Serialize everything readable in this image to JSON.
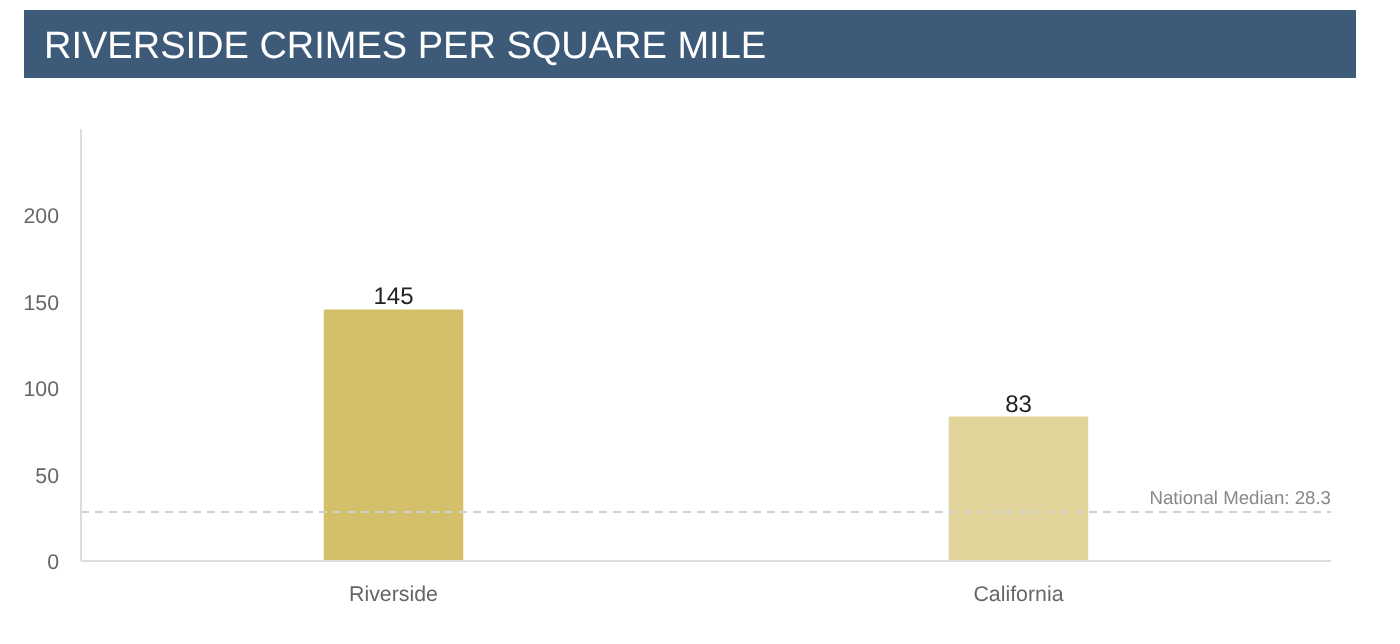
{
  "chart_data": {
    "type": "bar",
    "title": "RIVERSIDE CRIMES PER SQUARE MILE",
    "categories": [
      "Riverside",
      "California"
    ],
    "values": [
      145,
      83
    ],
    "colors": [
      "#d4c06a",
      "#e2d59c"
    ],
    "data_labels": true,
    "ylim": [
      0,
      250
    ],
    "yticks": [
      0,
      50,
      100,
      150,
      200
    ],
    "grid": false,
    "ref_lines": [
      {
        "axis": "y",
        "value": 28.3,
        "label": "National Median: 28.3",
        "color": "#d0d0d0",
        "line_style": "dashed"
      }
    ]
  }
}
